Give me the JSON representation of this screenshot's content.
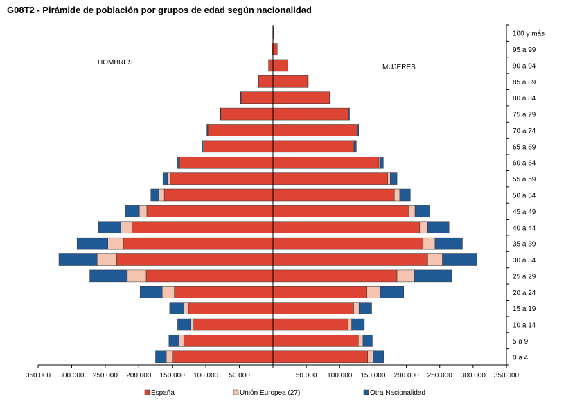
{
  "chart_data": {
    "type": "bar",
    "orientation": "horizontal-pyramid",
    "title": "G08T2 - Pirámide de población por grupos de edad según nacionalidad",
    "left_side_label": "HOMBRES",
    "right_side_label": "MUJERES",
    "xlim": [
      -350000,
      350000
    ],
    "x_ticks": [
      -350000,
      -300000,
      -250000,
      -200000,
      -150000,
      -100000,
      -50000,
      50000,
      100000,
      150000,
      200000,
      250000,
      300000,
      350000
    ],
    "x_tick_labels": [
      "350.000",
      "300.000",
      "250.000",
      "200.000",
      "150.000",
      "100.000",
      "50.000",
      "50.000",
      "100.000",
      "150.000",
      "200.000",
      "250.000",
      "300.000",
      "350.000"
    ],
    "categories": [
      "0 a 4",
      "5 a 9",
      "10 a 14",
      "15 a 19",
      "20 a 24",
      "25 a 29",
      "30 a 34",
      "35 a 39",
      "40 a 44",
      "45 a 49",
      "50 a 54",
      "55 a 59",
      "60 a 64",
      "65 a 69",
      "70 a 74",
      "75 a 79",
      "80 a 84",
      "85 a 89",
      "90 a 94",
      "95 a 99",
      "100 y más"
    ],
    "series": [
      {
        "name": "España",
        "color": "#dd4433",
        "men": [
          150000,
          133000,
          118000,
          126000,
          147000,
          189000,
          233000,
          223000,
          210000,
          188000,
          162000,
          153000,
          139000,
          103000,
          97000,
          78000,
          48000,
          22000,
          6500,
          1500,
          200
        ],
        "women": [
          142000,
          128000,
          113000,
          121000,
          141000,
          186000,
          232000,
          225000,
          220000,
          203000,
          182000,
          172000,
          159000,
          121000,
          126000,
          113000,
          85000,
          52000,
          22000,
          6500,
          1000
        ]
      },
      {
        "name": "Unión Europea (27)",
        "color": "#f5c4b0",
        "men": [
          9000,
          7000,
          5000,
          7000,
          18000,
          28000,
          29000,
          23000,
          17000,
          11000,
          8000,
          4000,
          2000,
          1000,
          500,
          500,
          300,
          200,
          100,
          0,
          0
        ],
        "women": [
          8000,
          7000,
          5000,
          8000,
          20000,
          26000,
          22000,
          18000,
          12000,
          10000,
          8000,
          4000,
          1500,
          1000,
          500,
          300,
          200,
          100,
          0,
          0,
          0
        ],
        "color_edge": "#888888"
      },
      {
        "name": "Otra Nacionalidad",
        "color": "#1f5a97",
        "men": [
          16000,
          15000,
          19000,
          21000,
          33000,
          56000,
          57000,
          46000,
          33000,
          21000,
          12000,
          7000,
          2000,
          1500,
          1000,
          500,
          200,
          100,
          0,
          0,
          0
        ],
        "women": [
          16000,
          14000,
          19000,
          19000,
          35000,
          56000,
          52000,
          41000,
          32000,
          22000,
          16000,
          10000,
          5000,
          3000,
          2000,
          1500,
          500,
          100,
          0,
          0,
          0
        ]
      }
    ],
    "legend_position": "bottom",
    "grid": false
  }
}
